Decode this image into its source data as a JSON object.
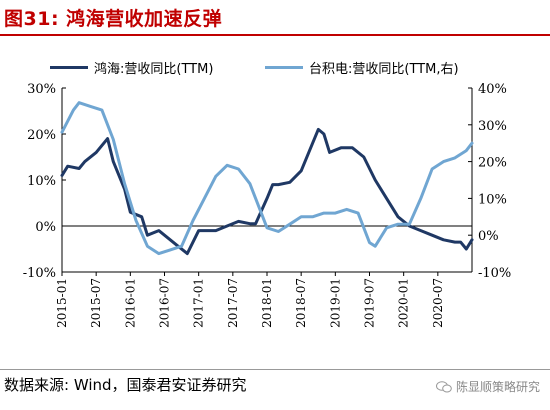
{
  "header": {
    "title": "图31: 鸿海营收加速反弹"
  },
  "footer": {
    "source": "数据来源: Wind，国泰君安证券研究",
    "watermark": "陈显顺策略研究"
  },
  "colors": {
    "accent": "#c00000",
    "series1": "#1f3864",
    "series2": "#70a6d2"
  },
  "chart_data": {
    "type": "line",
    "left_axis": {
      "ylim": [
        -10,
        30
      ],
      "ticks": [
        "-10%",
        "0%",
        "10%",
        "20%",
        "30%"
      ]
    },
    "right_axis": {
      "ylim": [
        -10,
        40
      ],
      "ticks": [
        "-10%",
        "0%",
        "10%",
        "20%",
        "30%",
        "40%"
      ]
    },
    "x_ticks": [
      "2015-01",
      "2015-07",
      "2016-01",
      "2016-07",
      "2017-01",
      "2017-07",
      "2018-01",
      "2018-07",
      "2019-01",
      "2019-07",
      "2020-01",
      "2020-07"
    ],
    "x_range": [
      "2015-01",
      "2021-01"
    ],
    "legend_position": "top",
    "grid": false,
    "series": [
      {
        "name": "鸿海:营收同比(TTM)",
        "axis": "left",
        "dates": [
          "2015-01",
          "2015-02",
          "2015-04",
          "2015-05",
          "2015-07",
          "2015-09",
          "2015-10",
          "2015-12",
          "2016-01",
          "2016-03",
          "2016-04",
          "2016-06",
          "2016-08",
          "2016-09",
          "2016-11",
          "2017-01",
          "2017-03",
          "2017-04",
          "2017-06",
          "2017-08",
          "2017-10",
          "2017-11",
          "2018-01",
          "2018-02",
          "2018-03",
          "2018-05",
          "2018-07",
          "2018-09",
          "2018-10",
          "2018-11",
          "2018-12",
          "2019-02",
          "2019-04",
          "2019-06",
          "2019-08",
          "2019-10",
          "2019-12",
          "2020-02",
          "2020-04",
          "2020-06",
          "2020-08",
          "2020-10",
          "2020-11",
          "2020-12",
          "2021-01"
        ],
        "values": [
          11,
          13,
          12.5,
          14,
          16,
          19,
          14,
          8,
          3,
          2,
          -2,
          -1,
          -3,
          -4,
          -6,
          -1,
          -1,
          -1,
          0,
          1,
          0.5,
          0.5,
          6,
          9,
          9,
          9.5,
          12,
          18,
          21,
          20,
          16,
          17,
          17,
          15,
          10,
          6,
          2,
          0,
          -1,
          -2,
          -3,
          -3.5,
          -3.5,
          -5,
          -3
        ]
      },
      {
        "name": "台积电:营收同比(TTM,右)",
        "axis": "right",
        "dates": [
          "2015-01",
          "2015-03",
          "2015-04",
          "2015-06",
          "2015-08",
          "2015-10",
          "2015-12",
          "2016-02",
          "2016-04",
          "2016-06",
          "2016-08",
          "2016-10",
          "2016-12",
          "2017-02",
          "2017-04",
          "2017-06",
          "2017-08",
          "2017-10",
          "2017-12",
          "2018-01",
          "2018-03",
          "2018-05",
          "2018-07",
          "2018-09",
          "2018-11",
          "2019-01",
          "2019-03",
          "2019-05",
          "2019-07",
          "2019-08",
          "2019-10",
          "2019-12",
          "2020-02",
          "2020-04",
          "2020-06",
          "2020-08",
          "2020-10",
          "2020-12",
          "2021-01"
        ],
        "values": [
          28,
          34,
          36,
          35,
          34,
          26,
          14,
          4,
          -3,
          -5,
          -4,
          -3,
          4,
          10,
          16,
          19,
          18,
          14,
          6,
          2,
          1,
          3,
          5,
          5,
          6,
          6,
          7,
          6,
          -2,
          -3,
          2,
          3,
          3,
          10,
          18,
          20,
          21,
          23,
          25
        ]
      }
    ]
  }
}
